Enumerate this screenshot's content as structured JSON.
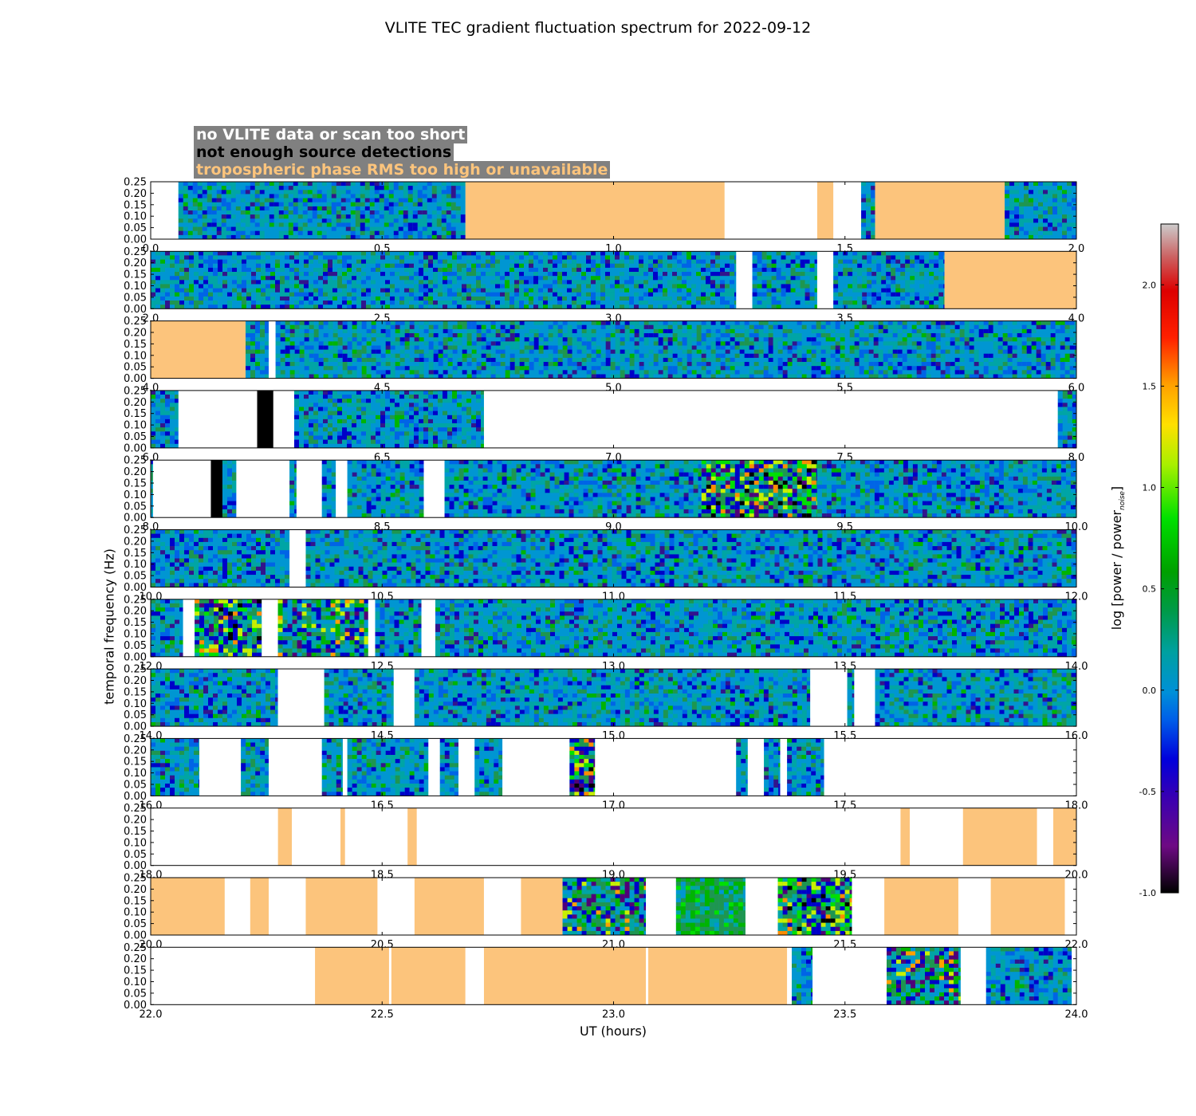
{
  "title": "VLITE TEC gradient fluctuation spectrum for 2022-09-12",
  "legend": [
    {
      "label": "no VLITE data or scan too short",
      "color": "#ffffff"
    },
    {
      "label": "not enough source detections",
      "color": "#000000"
    },
    {
      "label": "tropospheric phase RMS too high or unavailable",
      "color": "#fcc47c"
    }
  ],
  "colors": {
    "background_box": "#808080",
    "tropo": "#fcc47c",
    "no_detect": "#000000",
    "no_data": "#ffffff"
  },
  "chart_data": {
    "type": "heatmap",
    "title": "VLITE TEC gradient fluctuation spectrum for 2022-09-12",
    "xlabel": "UT (hours)",
    "ylabel": "temporal frequency (Hz)",
    "ylim": [
      0,
      0.25
    ],
    "yticks": [
      "0.00",
      "0.05",
      "0.10",
      "0.15",
      "0.20",
      "0.25"
    ],
    "colorbar": {
      "label": "log [power / power",
      "label_sub": "noise",
      "label_end": "]",
      "range": [
        -1.0,
        2.3
      ],
      "ticks": [
        "-1.0",
        "-0.5",
        "0.0",
        "0.5",
        "1.0",
        "1.5",
        "2.0"
      ],
      "tick_values": [
        -1.0,
        -0.5,
        0.0,
        0.5,
        1.0,
        1.5,
        2.0
      ]
    },
    "panels": [
      {
        "range": [
          0,
          2
        ],
        "xticks": [
          "0.0",
          "0.5",
          "1.0",
          "1.5",
          "2.0"
        ],
        "segments": [
          [
            0,
            0.06,
            "nodata"
          ],
          [
            0.06,
            0.68,
            "data"
          ],
          [
            0.68,
            1.24,
            "tropo"
          ],
          [
            1.24,
            1.44,
            "nodata"
          ],
          [
            1.44,
            1.475,
            "tropo"
          ],
          [
            1.475,
            1.535,
            "nodata"
          ],
          [
            1.535,
            1.565,
            "data"
          ],
          [
            1.565,
            1.845,
            "tropo"
          ],
          [
            1.845,
            2.0,
            "data"
          ]
        ]
      },
      {
        "range": [
          2,
          4
        ],
        "xticks": [
          "2.0",
          "2.5",
          "3.0",
          "3.5",
          "4.0"
        ],
        "segments": [
          [
            2.0,
            3.265,
            "data"
          ],
          [
            3.265,
            3.3,
            "nodata"
          ],
          [
            3.3,
            3.44,
            "data"
          ],
          [
            3.44,
            3.475,
            "nodata"
          ],
          [
            3.475,
            3.715,
            "data"
          ],
          [
            3.715,
            4.0,
            "tropo"
          ]
        ]
      },
      {
        "range": [
          4,
          6
        ],
        "xticks": [
          "4.0",
          "4.5",
          "5.0",
          "5.5",
          "6.0"
        ],
        "segments": [
          [
            4.0,
            4.205,
            "tropo"
          ],
          [
            4.205,
            4.255,
            "data"
          ],
          [
            4.255,
            4.27,
            "nodata"
          ],
          [
            4.27,
            6.0,
            "data"
          ]
        ]
      },
      {
        "range": [
          6,
          8
        ],
        "xticks": [
          "6.0",
          "6.5",
          "7.0",
          "7.5",
          "8.0"
        ],
        "segments": [
          [
            6.0,
            6.06,
            "data"
          ],
          [
            6.06,
            6.23,
            "nodata"
          ],
          [
            6.23,
            6.265,
            "nodetect"
          ],
          [
            6.265,
            6.31,
            "nodata"
          ],
          [
            6.31,
            6.72,
            "data"
          ],
          [
            6.72,
            7.96,
            "nodata"
          ],
          [
            7.96,
            8.0,
            "data"
          ]
        ]
      },
      {
        "range": [
          8,
          10
        ],
        "xticks": [
          "8.0",
          "8.5",
          "9.0",
          "9.5",
          "10.0"
        ],
        "segments": [
          [
            8.0,
            8.005,
            "data"
          ],
          [
            8.005,
            8.13,
            "nodata"
          ],
          [
            8.13,
            8.155,
            "nodetect"
          ],
          [
            8.155,
            8.185,
            "data"
          ],
          [
            8.185,
            8.3,
            "nodata"
          ],
          [
            8.3,
            8.315,
            "data"
          ],
          [
            8.315,
            8.37,
            "nodata"
          ],
          [
            8.37,
            8.4,
            "data"
          ],
          [
            8.4,
            8.425,
            "nodata"
          ],
          [
            8.425,
            8.59,
            "data"
          ],
          [
            8.59,
            8.635,
            "nodata"
          ],
          [
            8.635,
            9.19,
            "data"
          ],
          [
            9.19,
            9.44,
            "hot"
          ],
          [
            9.44,
            10.0,
            "data"
          ]
        ]
      },
      {
        "range": [
          10,
          12
        ],
        "xticks": [
          "10.0",
          "10.5",
          "11.0",
          "11.5",
          "12.0"
        ],
        "segments": [
          [
            10.0,
            10.3,
            "data"
          ],
          [
            10.3,
            10.335,
            "nodata"
          ],
          [
            10.335,
            12.0,
            "data"
          ]
        ]
      },
      {
        "range": [
          12,
          14
        ],
        "xticks": [
          "12.0",
          "12.5",
          "13.0",
          "13.5",
          "14.0"
        ],
        "segments": [
          [
            12.0,
            12.07,
            "data"
          ],
          [
            12.07,
            12.095,
            "nodata"
          ],
          [
            12.095,
            12.24,
            "hot"
          ],
          [
            12.24,
            12.275,
            "nodata"
          ],
          [
            12.275,
            12.47,
            "warm"
          ],
          [
            12.47,
            12.485,
            "nodata"
          ],
          [
            12.485,
            12.585,
            "data"
          ],
          [
            12.585,
            12.615,
            "nodata"
          ],
          [
            12.615,
            14.0,
            "data"
          ]
        ]
      },
      {
        "range": [
          14,
          16
        ],
        "xticks": [
          "14.0",
          "14.5",
          "15.0",
          "15.5",
          "16.0"
        ],
        "segments": [
          [
            14.0,
            14.275,
            "data"
          ],
          [
            14.275,
            14.375,
            "nodata"
          ],
          [
            14.375,
            14.525,
            "data"
          ],
          [
            14.525,
            14.57,
            "nodata"
          ],
          [
            14.57,
            15.425,
            "data"
          ],
          [
            15.425,
            15.505,
            "nodata"
          ],
          [
            15.505,
            15.52,
            "data"
          ],
          [
            15.52,
            15.565,
            "nodata"
          ],
          [
            15.565,
            16.0,
            "data"
          ]
        ]
      },
      {
        "range": [
          16,
          18
        ],
        "xticks": [
          "16.0",
          "16.5",
          "17.0",
          "17.5",
          "18.0"
        ],
        "segments": [
          [
            16.0,
            16.105,
            "data"
          ],
          [
            16.105,
            16.195,
            "nodata"
          ],
          [
            16.195,
            16.255,
            "data"
          ],
          [
            16.255,
            16.37,
            "nodata"
          ],
          [
            16.37,
            16.415,
            "data"
          ],
          [
            16.415,
            16.425,
            "nodata"
          ],
          [
            16.425,
            16.6,
            "data"
          ],
          [
            16.6,
            16.625,
            "nodata"
          ],
          [
            16.625,
            16.665,
            "data"
          ],
          [
            16.665,
            16.7,
            "nodata"
          ],
          [
            16.7,
            16.76,
            "data"
          ],
          [
            16.76,
            16.905,
            "nodata"
          ],
          [
            16.905,
            16.96,
            "hot"
          ],
          [
            16.96,
            17.265,
            "nodata"
          ],
          [
            17.265,
            17.29,
            "data"
          ],
          [
            17.29,
            17.325,
            "nodata"
          ],
          [
            17.325,
            17.36,
            "data"
          ],
          [
            17.36,
            17.375,
            "nodata"
          ],
          [
            17.375,
            17.455,
            "data"
          ],
          [
            17.455,
            18.0,
            "nodata"
          ]
        ]
      },
      {
        "range": [
          18,
          20
        ],
        "xticks": [
          "18.0",
          "18.5",
          "19.0",
          "19.5",
          "20.0"
        ],
        "segments": [
          [
            18.0,
            18.275,
            "nodata"
          ],
          [
            18.275,
            18.305,
            "tropo"
          ],
          [
            18.305,
            18.41,
            "nodata"
          ],
          [
            18.41,
            18.42,
            "tropo"
          ],
          [
            18.42,
            18.555,
            "nodata"
          ],
          [
            18.555,
            18.575,
            "tropo"
          ],
          [
            18.575,
            19.62,
            "nodata"
          ],
          [
            19.62,
            19.64,
            "tropo"
          ],
          [
            19.64,
            19.755,
            "nodata"
          ],
          [
            19.755,
            19.915,
            "tropo"
          ],
          [
            19.915,
            19.95,
            "nodata"
          ],
          [
            19.95,
            20.0,
            "tropo"
          ]
        ]
      },
      {
        "range": [
          20,
          22
        ],
        "xticks": [
          "20.0",
          "20.5",
          "21.0",
          "21.5",
          "22.0"
        ],
        "segments": [
          [
            20.0,
            20.16,
            "tropo"
          ],
          [
            20.16,
            20.215,
            "nodata"
          ],
          [
            20.215,
            20.255,
            "tropo"
          ],
          [
            20.255,
            20.335,
            "nodata"
          ],
          [
            20.335,
            20.49,
            "tropo"
          ],
          [
            20.49,
            20.57,
            "nodata"
          ],
          [
            20.57,
            20.72,
            "tropo"
          ],
          [
            20.72,
            20.8,
            "nodata"
          ],
          [
            20.8,
            20.89,
            "tropo"
          ],
          [
            20.89,
            21.07,
            "warm"
          ],
          [
            21.07,
            21.135,
            "nodata"
          ],
          [
            21.135,
            21.285,
            "greenish"
          ],
          [
            21.285,
            21.355,
            "nodata"
          ],
          [
            21.355,
            21.515,
            "hot"
          ],
          [
            21.515,
            21.585,
            "nodata"
          ],
          [
            21.585,
            21.745,
            "tropo"
          ],
          [
            21.745,
            21.815,
            "nodata"
          ],
          [
            21.815,
            21.975,
            "tropo"
          ],
          [
            21.975,
            22.0,
            "nodata"
          ]
        ]
      },
      {
        "range": [
          22,
          24
        ],
        "xticks": [
          "22.0",
          "22.5",
          "23.0",
          "23.5",
          "24.0"
        ],
        "segments": [
          [
            22.0,
            22.355,
            "nodata"
          ],
          [
            22.355,
            22.515,
            "tropo"
          ],
          [
            22.515,
            22.52,
            "nodata"
          ],
          [
            22.52,
            22.68,
            "tropo"
          ],
          [
            22.68,
            22.72,
            "nodata"
          ],
          [
            22.72,
            23.07,
            "tropo"
          ],
          [
            23.07,
            23.075,
            "nodata"
          ],
          [
            23.075,
            23.375,
            "tropo"
          ],
          [
            23.375,
            23.385,
            "nodata"
          ],
          [
            23.385,
            23.43,
            "data"
          ],
          [
            23.43,
            23.59,
            "nodata"
          ],
          [
            23.59,
            23.75,
            "warm"
          ],
          [
            23.75,
            23.805,
            "nodata"
          ],
          [
            23.805,
            23.99,
            "data"
          ],
          [
            23.99,
            24.0,
            "nodata"
          ]
        ]
      }
    ]
  }
}
